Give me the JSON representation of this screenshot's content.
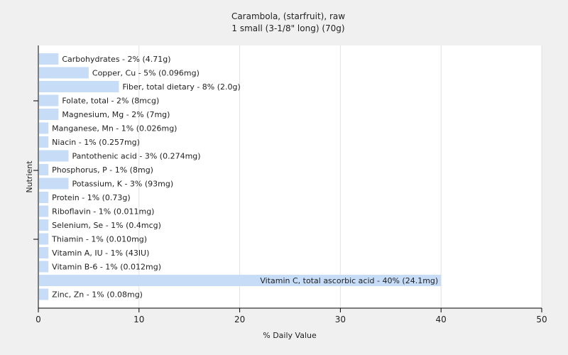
{
  "chart_data": {
    "type": "bar",
    "orientation": "horizontal",
    "title": "Carambola, (starfruit), raw",
    "subtitle": "1 small (3-1/8\" long) (70g)",
    "xlabel": "% Daily Value",
    "ylabel": "Nutrient",
    "xlim": [
      0,
      50
    ],
    "xticks": [
      0,
      10,
      20,
      30,
      40,
      50
    ],
    "grid": true,
    "bar_color": "#c6dcf7",
    "categories": [
      "Carbohydrates",
      "Copper, Cu",
      "Fiber, total dietary",
      "Folate, total",
      "Magnesium, Mg",
      "Manganese, Mn",
      "Niacin",
      "Pantothenic acid",
      "Phosphorus, P",
      "Potassium, K",
      "Protein",
      "Riboflavin",
      "Selenium, Se",
      "Thiamin",
      "Vitamin A, IU",
      "Vitamin B-6",
      "Vitamin C, total ascorbic acid",
      "Zinc, Zn"
    ],
    "values": [
      2,
      5,
      8,
      2,
      2,
      1,
      1,
      3,
      1,
      3,
      1,
      1,
      1,
      1,
      1,
      1,
      40,
      1
    ],
    "labels": [
      "Carbohydrates - 2% (4.71g)",
      "Copper, Cu - 5% (0.096mg)",
      "Fiber, total dietary - 8% (2.0g)",
      "Folate, total - 2% (8mcg)",
      "Magnesium, Mg - 2% (7mg)",
      "Manganese, Mn - 1% (0.026mg)",
      "Niacin - 1% (0.257mg)",
      "Pantothenic acid - 3% (0.274mg)",
      "Phosphorus, P - 1% (8mg)",
      "Potassium, K - 3% (93mg)",
      "Protein - 1% (0.73g)",
      "Riboflavin - 1% (0.011mg)",
      "Selenium, Se - 1% (0.4mcg)",
      "Thiamin - 1% (0.010mg)",
      "Vitamin A, IU - 1% (43IU)",
      "Vitamin B-6 - 1% (0.012mg)",
      "Vitamin C, total ascorbic acid - 40% (24.1mg)",
      "Zinc, Zn - 1% (0.08mg)"
    ]
  }
}
